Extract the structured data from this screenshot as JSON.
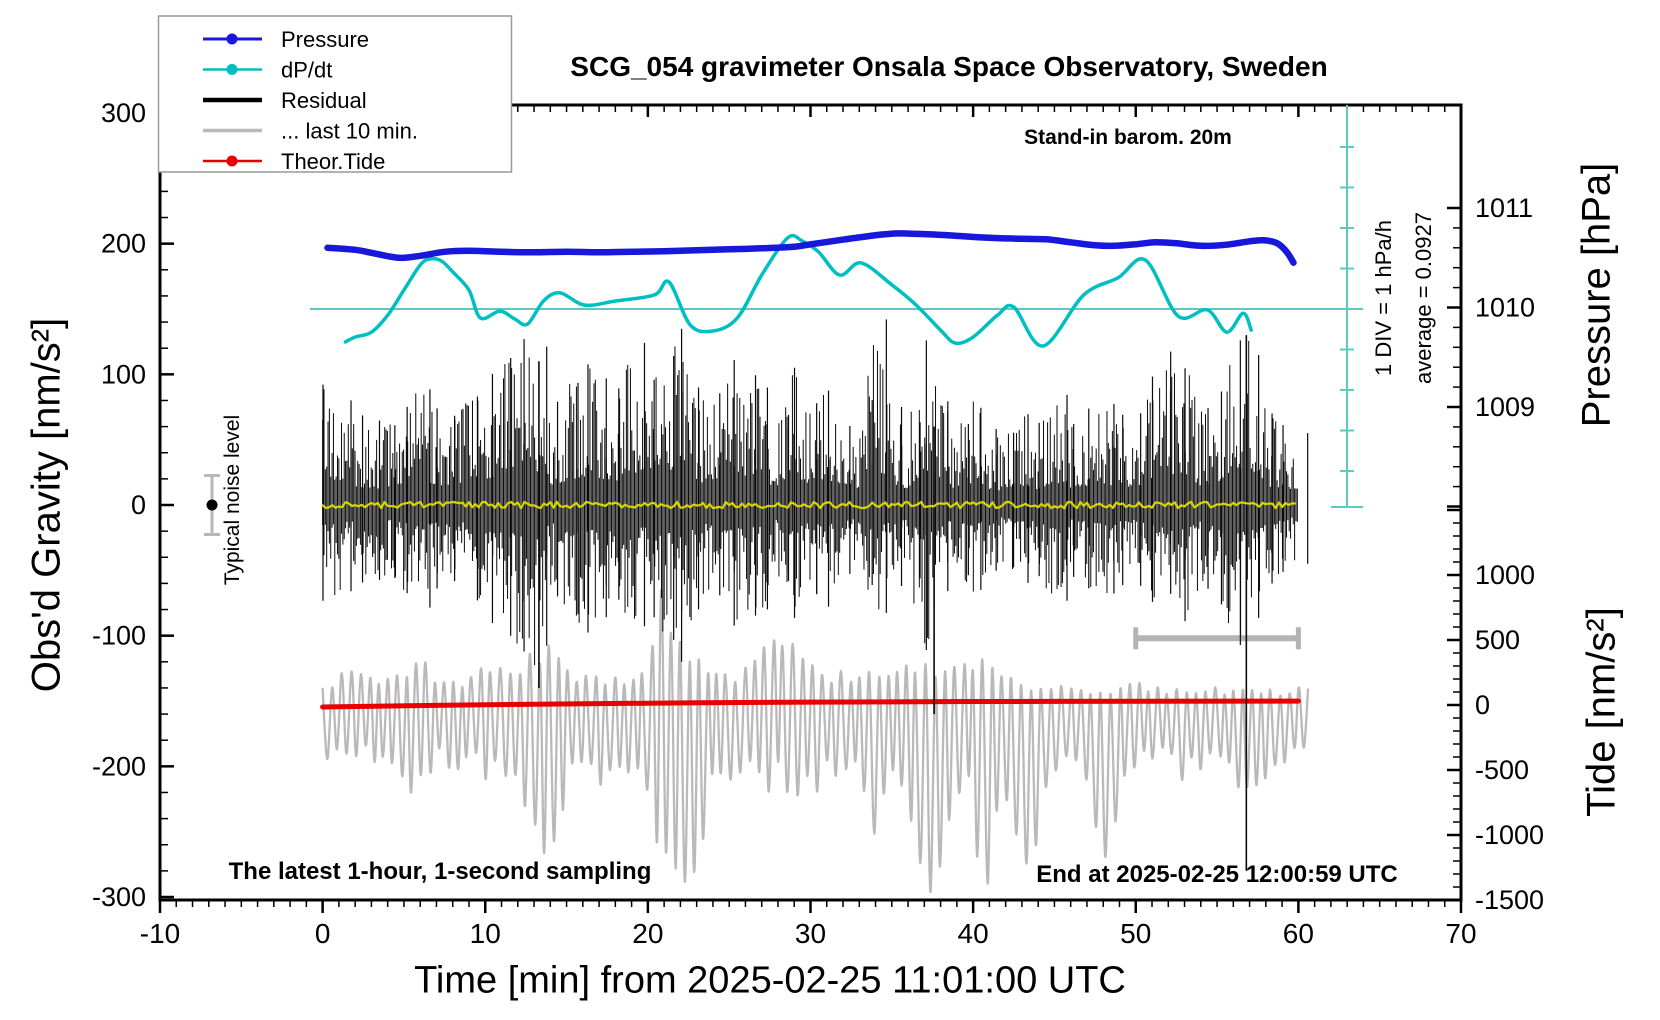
{
  "title": "SCG_054 gravimeter Onsala Space Observatory, Sweden",
  "annotations": {
    "stand_in": "Stand-in barom. 20m",
    "div_scale": "1 DIV = 1 hPa/h",
    "average": "average = 0.0927",
    "noise_label": "Typical noise level",
    "sampling_note": "The latest 1-hour, 1-second sampling",
    "end_note": "End at 2025-02-25 12:00:59 UTC"
  },
  "legend": {
    "items": [
      {
        "label": "Pressure",
        "color": "#1818dd",
        "width": 3,
        "dot": true
      },
      {
        "label": "dP/dt",
        "color": "#00bfc0",
        "width": 2.5,
        "dot": true
      },
      {
        "label": "Residual",
        "color": "#000000",
        "width": 4.5,
        "dot": false
      },
      {
        "label": "... last 10 min.",
        "color": "#b9b9b9",
        "width": 3.5,
        "dot": false
      },
      {
        "label": "Theor.Tide",
        "color": "#e80000",
        "width": 2.5,
        "dot": true
      }
    ]
  },
  "axes": {
    "x": {
      "label": "Time [min] from 2025-02-25 11:01:00 UTC",
      "min": -10,
      "max": 70,
      "major": 10,
      "minor": 1,
      "ticks": [
        -10,
        0,
        10,
        20,
        30,
        40,
        50,
        60,
        70
      ]
    },
    "gravity": {
      "label": "Obs'd Gravity [nm/s²]",
      "min": -300,
      "max": 300,
      "major": 100,
      "minor": 20,
      "ticks": [
        300,
        200,
        100,
        0,
        -100,
        -200,
        -300
      ]
    },
    "pressure": {
      "label": "Pressure [hPa]",
      "major": 1,
      "minor": 0.2,
      "ticks": [
        1011,
        1010,
        1009
      ]
    },
    "tide": {
      "label": "Tide [nm/s²]",
      "major": 500,
      "minor": 100,
      "ticks": [
        1000,
        500,
        0,
        -500,
        -1000,
        -1500
      ]
    }
  },
  "chart_data": {
    "type": "line",
    "title": "SCG_054 gravimeter Onsala Space Observatory, Sweden",
    "xlabel": "Time [min] from 2025-02-25 11:01:00 UTC",
    "x_range": [
      -10,
      70
    ],
    "gravity_range": [
      -300,
      300
    ],
    "dpdt": {
      "average_hpa_per_h": 0.0927,
      "div_hpa_per_h": 1,
      "points": [
        [
          1.4,
          -0.72
        ],
        [
          2,
          -0.6
        ],
        [
          3,
          -0.48
        ],
        [
          4,
          -0.06
        ],
        [
          5,
          0.56
        ],
        [
          6,
          1.18
        ],
        [
          6.6,
          1.33
        ],
        [
          7.3,
          1.28
        ],
        [
          8,
          1.01
        ],
        [
          9,
          0.56
        ],
        [
          9.7,
          -0.13
        ],
        [
          10.9,
          0.04
        ],
        [
          11.8,
          -0.15
        ],
        [
          12.6,
          -0.28
        ],
        [
          13.6,
          0.3
        ],
        [
          14.6,
          0.49
        ],
        [
          16.1,
          0.19
        ],
        [
          18,
          0.29
        ],
        [
          20.4,
          0.44
        ],
        [
          21.3,
          0.76
        ],
        [
          22.6,
          -0.3
        ],
        [
          24,
          -0.45
        ],
        [
          25.5,
          -0.13
        ],
        [
          27,
          0.93
        ],
        [
          28.6,
          1.85
        ],
        [
          29.5,
          1.77
        ],
        [
          30.5,
          1.5
        ],
        [
          31.8,
          0.93
        ],
        [
          33.1,
          1.23
        ],
        [
          35,
          0.69
        ],
        [
          36.5,
          0.19
        ],
        [
          38,
          -0.43
        ],
        [
          38.9,
          -0.75
        ],
        [
          40,
          -0.6
        ],
        [
          41.5,
          -0.06
        ],
        [
          42.5,
          0.14
        ],
        [
          44.3,
          -0.82
        ],
        [
          46.8,
          0.44
        ],
        [
          48.9,
          0.86
        ],
        [
          50.6,
          1.3
        ],
        [
          52.6,
          -0.08
        ],
        [
          54.4,
          0.07
        ],
        [
          55.6,
          -0.48
        ],
        [
          56.6,
          -0.01
        ],
        [
          57.1,
          -0.43
        ]
      ]
    },
    "pressure_hpa": [
      [
        0.3,
        1010.6
      ],
      [
        2,
        1010.58
      ],
      [
        3,
        1010.55
      ],
      [
        4.7,
        1010.5
      ],
      [
        6,
        1010.52
      ],
      [
        7.5,
        1010.56
      ],
      [
        9,
        1010.57
      ],
      [
        11,
        1010.56
      ],
      [
        13,
        1010.555
      ],
      [
        15,
        1010.56
      ],
      [
        17,
        1010.555
      ],
      [
        19,
        1010.56
      ],
      [
        21,
        1010.565
      ],
      [
        23,
        1010.575
      ],
      [
        25,
        1010.585
      ],
      [
        27,
        1010.595
      ],
      [
        29,
        1010.61
      ],
      [
        30,
        1010.635
      ],
      [
        31.5,
        1010.67
      ],
      [
        33,
        1010.705
      ],
      [
        34.5,
        1010.735
      ],
      [
        35.5,
        1010.745
      ],
      [
        36.5,
        1010.74
      ],
      [
        38,
        1010.73
      ],
      [
        39.5,
        1010.715
      ],
      [
        41,
        1010.7
      ],
      [
        43,
        1010.69
      ],
      [
        44.5,
        1010.685
      ],
      [
        46,
        1010.655
      ],
      [
        47.5,
        1010.625
      ],
      [
        48.7,
        1010.62
      ],
      [
        50,
        1010.635
      ],
      [
        51.2,
        1010.655
      ],
      [
        52.5,
        1010.645
      ],
      [
        54,
        1010.62
      ],
      [
        55.5,
        1010.63
      ],
      [
        57,
        1010.665
      ],
      [
        57.9,
        1010.675
      ],
      [
        58.7,
        1010.645
      ],
      [
        59.3,
        1010.555
      ],
      [
        59.7,
        1010.45
      ]
    ],
    "theor_tide": [
      [
        0,
        -15
      ],
      [
        10,
        2
      ],
      [
        20,
        14
      ],
      [
        30,
        22
      ],
      [
        45,
        28
      ],
      [
        60,
        30
      ]
    ],
    "residual_envelope_nms2": [
      [
        0,
        95,
        -75
      ],
      [
        2,
        70,
        -60
      ],
      [
        4,
        60,
        -55
      ],
      [
        6,
        90,
        -80
      ],
      [
        8,
        65,
        -55
      ],
      [
        10,
        100,
        -90
      ],
      [
        12,
        125,
        -110
      ],
      [
        13,
        140,
        -125
      ],
      [
        14,
        75,
        -65
      ],
      [
        16,
        110,
        -100
      ],
      [
        17,
        100,
        -90
      ],
      [
        18,
        85,
        -70
      ],
      [
        19,
        130,
        -95
      ],
      [
        20,
        90,
        -80
      ],
      [
        21,
        110,
        -100
      ],
      [
        22,
        135,
        -120
      ],
      [
        23,
        90,
        -80
      ],
      [
        24,
        75,
        -60
      ],
      [
        25,
        115,
        -95
      ],
      [
        26,
        100,
        -85
      ],
      [
        27,
        90,
        -80
      ],
      [
        28,
        65,
        -55
      ],
      [
        29,
        110,
        -90
      ],
      [
        30,
        75,
        -65
      ],
      [
        31,
        90,
        -80
      ],
      [
        32,
        60,
        -52
      ],
      [
        33,
        62,
        -55
      ],
      [
        34,
        150,
        -85
      ],
      [
        35,
        75,
        -62
      ],
      [
        36,
        62,
        -55
      ],
      [
        37,
        130,
        -115
      ],
      [
        38,
        85,
        -70
      ],
      [
        39,
        60,
        -52
      ],
      [
        40,
        80,
        -70
      ],
      [
        41,
        60,
        -52
      ],
      [
        42,
        52,
        -45
      ],
      [
        43,
        70,
        -60
      ],
      [
        44,
        60,
        -52
      ],
      [
        45,
        90,
        -78
      ],
      [
        46,
        62,
        -55
      ],
      [
        47,
        72,
        -62
      ],
      [
        48,
        80,
        -70
      ],
      [
        49,
        70,
        -62
      ],
      [
        50,
        62,
        -55
      ],
      [
        51,
        90,
        -78
      ],
      [
        52,
        118,
        -65
      ],
      [
        53,
        112,
        -95
      ],
      [
        54,
        72,
        -62
      ],
      [
        55,
        80,
        -70
      ],
      [
        56,
        125,
        -110
      ],
      [
        57,
        130,
        -95
      ],
      [
        58,
        72,
        -62
      ],
      [
        59,
        62,
        -52
      ],
      [
        60,
        55,
        -45
      ]
    ],
    "residual_outliers": [
      [
        13.3,
        110,
        -140
      ],
      [
        37.6,
        60,
        -160
      ],
      [
        56.8,
        130,
        -280
      ]
    ],
    "last10_envelope_tide": [
      [
        0,
        150,
        -420
      ],
      [
        1,
        250,
        -500
      ],
      [
        2,
        300,
        -600
      ],
      [
        3,
        220,
        -500
      ],
      [
        4,
        250,
        -650
      ],
      [
        5,
        320,
        -780
      ],
      [
        5.8,
        480,
        -870
      ],
      [
        7,
        220,
        -560
      ],
      [
        8,
        180,
        -480
      ],
      [
        9,
        250,
        -560
      ],
      [
        10,
        300,
        -650
      ],
      [
        11,
        350,
        -700
      ],
      [
        12,
        320,
        -760
      ],
      [
        13,
        420,
        -920
      ],
      [
        13.9,
        500,
        -1260
      ],
      [
        15,
        300,
        -700
      ],
      [
        16,
        260,
        -600
      ],
      [
        17,
        300,
        -660
      ],
      [
        18,
        220,
        -560
      ],
      [
        19,
        260,
        -600
      ],
      [
        20,
        420,
        -800
      ],
      [
        20.6,
        980,
        -1100
      ],
      [
        21.5,
        720,
        -1220
      ],
      [
        22.4,
        520,
        -1420
      ],
      [
        23,
        420,
        -1300
      ],
      [
        24,
        300,
        -720
      ],
      [
        25,
        260,
        -620
      ],
      [
        26,
        300,
        -660
      ],
      [
        27,
        420,
        -700
      ],
      [
        28,
        600,
        -720
      ],
      [
        29,
        500,
        -760
      ],
      [
        30,
        360,
        -700
      ],
      [
        31,
        300,
        -660
      ],
      [
        32,
        260,
        -620
      ],
      [
        33,
        300,
        -700
      ],
      [
        34,
        260,
        -1060
      ],
      [
        35,
        300,
        -700
      ],
      [
        36,
        360,
        -820
      ],
      [
        37,
        420,
        -1420
      ],
      [
        37.6,
        360,
        -1560
      ],
      [
        38.5,
        300,
        -900
      ],
      [
        39,
        360,
        -820
      ],
      [
        40,
        430,
        -920
      ],
      [
        40.7,
        430,
        -1640
      ],
      [
        41.5,
        360,
        -820
      ],
      [
        42,
        300,
        -720
      ],
      [
        43.5,
        120,
        -1360
      ],
      [
        44.5,
        160,
        -620
      ],
      [
        45.5,
        200,
        -560
      ],
      [
        46.5,
        140,
        -520
      ],
      [
        47.3,
        110,
        -760
      ],
      [
        47.9,
        110,
        -1240
      ],
      [
        48.5,
        130,
        -1100
      ],
      [
        49,
        160,
        -720
      ],
      [
        50,
        200,
        -620
      ],
      [
        51,
        160,
        -560
      ],
      [
        52,
        120,
        -520
      ],
      [
        53,
        160,
        -620
      ],
      [
        54,
        120,
        -560
      ],
      [
        55,
        160,
        -620
      ],
      [
        56,
        110,
        -660
      ],
      [
        57,
        160,
        -720
      ],
      [
        58,
        130,
        -620
      ],
      [
        59,
        110,
        -560
      ],
      [
        60,
        160,
        -460
      ],
      [
        60.8,
        110,
        -320
      ]
    ],
    "last10_bracket": {
      "t1": 50,
      "t2": 60,
      "gravity": -102
    },
    "noise_marker": {
      "t": -6.8,
      "gravity": 0,
      "half_range_nms2": 18
    },
    "colors": {
      "pressure": "#1818dd",
      "dpdt": "#00bfc0",
      "dpdt_avg": "#5cc9c2",
      "residual": "#0a0a0a",
      "residual_mean": "#d6d600",
      "last10": "#b9b9b9",
      "theor_tide": "#e80000",
      "bracket": "#b3b3b3",
      "noise_bar": "#b8b8b8"
    }
  }
}
